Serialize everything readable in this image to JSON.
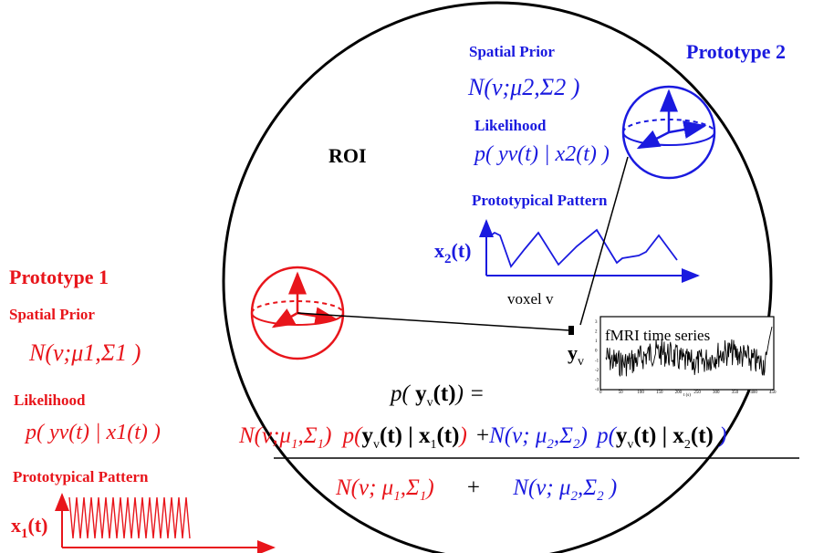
{
  "colors": {
    "red": "#e8151b",
    "blue": "#1a1adf",
    "black": "#000000"
  },
  "roi": {
    "label": "ROI"
  },
  "prototype2": {
    "title": "Prototype 2",
    "spatial_prior_label": "Spatial Prior",
    "spatial_prior_formula": "N(v;μ2,Σ2 )",
    "likelihood_label": "Likelihood",
    "likelihood_formula": "p( yv(t) | x2(t) )",
    "pattern_label": "Prototypical Pattern",
    "pattern_axis_label": "x2(t)",
    "sphere_icon": "sphere-axes-icon"
  },
  "prototype1": {
    "title": "Prototype 1",
    "spatial_prior_label": "Spatial Prior",
    "spatial_prior_formula": "N(v;μ1,Σ1 )",
    "likelihood_label": "Likelihood",
    "likelihood_formula": "p( yv(t) | x1(t) )",
    "pattern_label": "Prototypical Pattern",
    "pattern_axis_label": "x1(t)",
    "sphere_icon": "sphere-axes-icon"
  },
  "voxel": {
    "label": "voxel v",
    "symbol": "yv"
  },
  "fmri": {
    "title": "fMRI time series",
    "x_ticks": [
      "0",
      "50",
      "100",
      "150",
      "200",
      "250",
      "300",
      "350",
      "400",
      "450"
    ],
    "y_ticks": [
      "3",
      "2",
      "1",
      "0",
      "-1",
      "-2",
      "-3",
      "-4"
    ],
    "x_label": "t (s)"
  },
  "equation": {
    "lhs": "p( yv(t)) =",
    "num_term1_prior": "N(v;μ1,Σ1)",
    "num_term1_lik": "p(yv(t) | x1(t))",
    "plus": "+",
    "num_term2_prior": "N(v; μ2,Σ2)",
    "num_term2_lik": "p(yv(t) | x2(t) )",
    "den_term1": "N(v; μ1,Σ1)",
    "den_plus": "+",
    "den_term2": "N(v; μ2,Σ2 )"
  }
}
